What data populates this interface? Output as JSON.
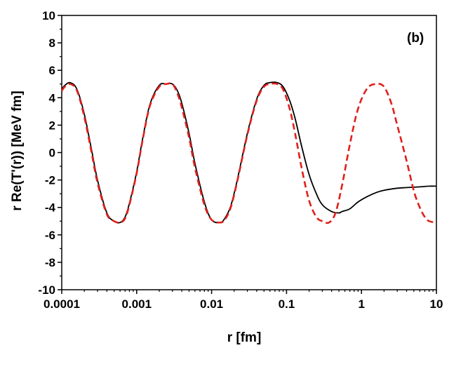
{
  "chart_data": {
    "type": "line",
    "title": "",
    "panel_label": "(b)",
    "xlabel": "r [fm]",
    "ylabel": "r Re(T'(r)) [MeV fm]",
    "x_scale": "log",
    "xlim": [
      0.0001,
      10
    ],
    "ylim": [
      -10,
      10
    ],
    "x_ticks": [
      0.0001,
      0.001,
      0.01,
      0.1,
      1,
      10
    ],
    "x_tick_labels": [
      "0.0001",
      "0.001",
      "0.01",
      "0.1",
      "1",
      "10"
    ],
    "y_ticks": [
      -10,
      -8,
      -6,
      -4,
      -2,
      0,
      2,
      4,
      6,
      8,
      10
    ],
    "y_tick_labels": [
      "-10",
      "-8",
      "-6",
      "-4",
      "-2",
      "0",
      "2",
      "4",
      "6",
      "8",
      "10"
    ],
    "grid": false,
    "legend": "none",
    "series": [
      {
        "color": "#000000",
        "style": "solid",
        "x": [
          0.0001,
          0.00011,
          0.00013,
          0.00016,
          0.0002,
          0.00025,
          0.0003,
          0.0004,
          0.0005,
          0.0006,
          0.0007,
          0.0008,
          0.001,
          0.0012,
          0.0015,
          0.002,
          0.0025,
          0.003,
          0.0035,
          0.004,
          0.005,
          0.006,
          0.008,
          0.01,
          0.013,
          0.015,
          0.018,
          0.022,
          0.03,
          0.04,
          0.05,
          0.06,
          0.075,
          0.09,
          0.11,
          0.13,
          0.16,
          0.2,
          0.25,
          0.3,
          0.4,
          0.5,
          0.55,
          0.7,
          0.9,
          1.2,
          1.6,
          2,
          3,
          4,
          6,
          8,
          10
        ],
        "y": [
          4.6,
          4.9,
          5.1,
          4.6,
          2.8,
          0.2,
          -2.0,
          -4.4,
          -5.0,
          -5.1,
          -4.7,
          -3.7,
          -1.4,
          1.0,
          3.5,
          4.9,
          5.0,
          5.0,
          4.5,
          3.6,
          1.4,
          -0.8,
          -3.6,
          -4.9,
          -5.1,
          -4.8,
          -3.9,
          -2.0,
          1.4,
          3.9,
          4.9,
          5.1,
          5.1,
          4.8,
          3.8,
          2.5,
          0.4,
          -1.6,
          -3.0,
          -3.8,
          -4.3,
          -4.4,
          -4.3,
          -4.1,
          -3.6,
          -3.2,
          -2.9,
          -2.75,
          -2.6,
          -2.55,
          -2.5,
          -2.45,
          -2.45
        ]
      },
      {
        "color": "#e0201b",
        "style": "dashed",
        "x": [
          0.0001,
          0.00011,
          0.00013,
          0.00016,
          0.0002,
          0.00025,
          0.0003,
          0.0004,
          0.0005,
          0.0006,
          0.0007,
          0.0008,
          0.001,
          0.0012,
          0.0015,
          0.002,
          0.0025,
          0.003,
          0.0035,
          0.004,
          0.005,
          0.006,
          0.008,
          0.01,
          0.013,
          0.015,
          0.018,
          0.022,
          0.03,
          0.04,
          0.05,
          0.06,
          0.075,
          0.09,
          0.11,
          0.13,
          0.16,
          0.2,
          0.25,
          0.3,
          0.37,
          0.45,
          0.55,
          0.7,
          0.9,
          1.2,
          1.6,
          2,
          2.5,
          3,
          4,
          5,
          6,
          7,
          8,
          10
        ],
        "y": [
          4.5,
          4.8,
          5.0,
          4.5,
          2.6,
          0.0,
          -2.2,
          -4.5,
          -5.0,
          -5.1,
          -4.8,
          -3.8,
          -1.5,
          0.9,
          3.4,
          4.8,
          5.0,
          5.0,
          4.3,
          3.3,
          1.1,
          -1.1,
          -3.8,
          -4.9,
          -5.1,
          -4.9,
          -4.0,
          -2.1,
          1.3,
          3.8,
          4.8,
          5.0,
          5.0,
          4.6,
          3.2,
          1.4,
          -1.2,
          -3.5,
          -4.7,
          -5.0,
          -5.1,
          -4.4,
          -2.4,
          0.6,
          3.2,
          4.7,
          5.0,
          4.8,
          3.6,
          2.0,
          -0.6,
          -2.8,
          -4.0,
          -4.7,
          -5.0,
          -5.1
        ]
      }
    ]
  }
}
